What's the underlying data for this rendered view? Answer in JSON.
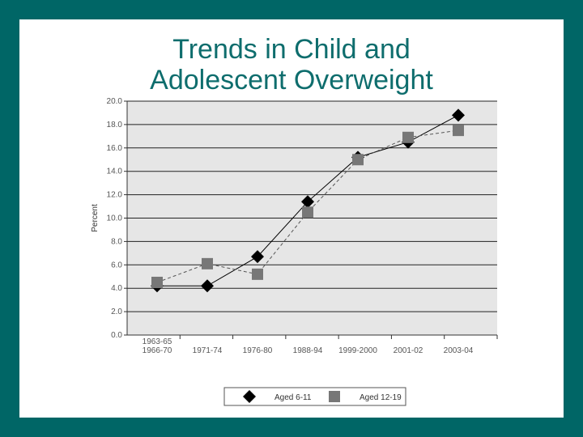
{
  "slide": {
    "title_line1": "Trends in Child and",
    "title_line2": "Adolescent Overweight"
  },
  "colors": {
    "background": "#006666",
    "title": "#0e6d6d",
    "plot_bg": "#e6e6e6",
    "series1": "#000000",
    "series2": "#777777"
  },
  "chart_data": {
    "type": "line",
    "title": "Trends in Child and Adolescent Overweight",
    "xlabel": "",
    "ylabel": "Percent",
    "ylim": [
      0,
      20
    ],
    "yticks": [
      "0.0",
      "2.0",
      "4.0",
      "6.0",
      "8.0",
      "10.0",
      "12.0",
      "14.0",
      "16.0",
      "18.0",
      "20.0"
    ],
    "categories": [
      {
        "line1": "1963-65",
        "line2": "1966-70"
      },
      {
        "line1": "1971-74",
        "line2": ""
      },
      {
        "line1": "1976-80",
        "line2": ""
      },
      {
        "line1": "1988-94",
        "line2": ""
      },
      {
        "line1": "1999-2000",
        "line2": ""
      },
      {
        "line1": "2001-02",
        "line2": ""
      },
      {
        "line1": "2003-04",
        "line2": ""
      }
    ],
    "series": [
      {
        "name": "Aged 6-11",
        "marker": "diamond",
        "values": [
          4.2,
          4.2,
          6.7,
          11.4,
          15.2,
          16.5,
          18.8
        ]
      },
      {
        "name": "Aged 12-19",
        "marker": "square",
        "values": [
          4.5,
          6.1,
          5.2,
          10.5,
          15.0,
          16.9,
          17.5
        ]
      }
    ],
    "grid": true,
    "legend_position": "bottom"
  }
}
